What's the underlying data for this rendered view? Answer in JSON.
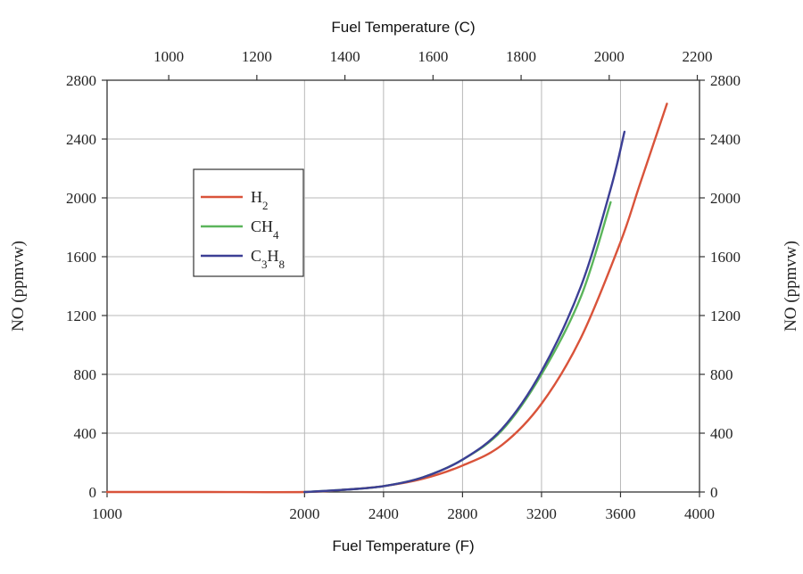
{
  "chart_data": {
    "type": "line",
    "xlabel": "Fuel Temperature (F)",
    "x2label": "Fuel Temperature (C)",
    "ylabel": "NO (ppmvw)",
    "y2label": "NO (ppmvw)",
    "xlim": [
      1000,
      4000
    ],
    "ylim": [
      0,
      2800
    ],
    "x2lim": [
      860,
      2205
    ],
    "x_ticks": [
      1000,
      2000,
      2400,
      2800,
      3200,
      3600,
      4000
    ],
    "y_ticks": [
      0,
      400,
      800,
      1200,
      1600,
      2000,
      2400,
      2800
    ],
    "x2_ticks": [
      1000,
      1200,
      1400,
      1600,
      1800,
      2000,
      2200
    ],
    "x_tick_labels": [
      "1000",
      "2000",
      "2400",
      "2800",
      "3200",
      "3600",
      "4000"
    ],
    "y_tick_labels": [
      "0",
      "400",
      "800",
      "1200",
      "1600",
      "2000",
      "2400",
      "2800"
    ],
    "x2_tick_labels": [
      "1000",
      "1200",
      "1400",
      "1600",
      "1800",
      "2000",
      "2200"
    ],
    "grid": true,
    "legend_position": "upper-left",
    "series": [
      {
        "name": "H2",
        "legend_base": "H",
        "legend_sub": "2",
        "color": "#d9533a",
        "points": [
          [
            1000,
            0
          ],
          [
            1500,
            0
          ],
          [
            2000,
            0
          ],
          [
            2200,
            15
          ],
          [
            2400,
            40
          ],
          [
            2600,
            90
          ],
          [
            2800,
            180
          ],
          [
            3000,
            320
          ],
          [
            3200,
            600
          ],
          [
            3400,
            1050
          ],
          [
            3600,
            1700
          ],
          [
            3700,
            2100
          ],
          [
            3835,
            2640
          ]
        ]
      },
      {
        "name": "CH4",
        "legend_base": "CH",
        "legend_sub": "4",
        "color": "#5bb55b",
        "points": [
          [
            2000,
            0
          ],
          [
            2200,
            15
          ],
          [
            2400,
            40
          ],
          [
            2600,
            100
          ],
          [
            2800,
            220
          ],
          [
            3000,
            420
          ],
          [
            3200,
            800
          ],
          [
            3400,
            1330
          ],
          [
            3550,
            1970
          ]
        ]
      },
      {
        "name": "C3H8",
        "legend_base": "C",
        "legend_sub": "3",
        "legend_base2": "H",
        "legend_sub2": "8",
        "color": "#3c3f95",
        "points": [
          [
            2000,
            0
          ],
          [
            2200,
            15
          ],
          [
            2400,
            40
          ],
          [
            2600,
            100
          ],
          [
            2800,
            220
          ],
          [
            3000,
            430
          ],
          [
            3200,
            820
          ],
          [
            3400,
            1400
          ],
          [
            3550,
            2060
          ],
          [
            3620,
            2450
          ]
        ]
      }
    ]
  }
}
